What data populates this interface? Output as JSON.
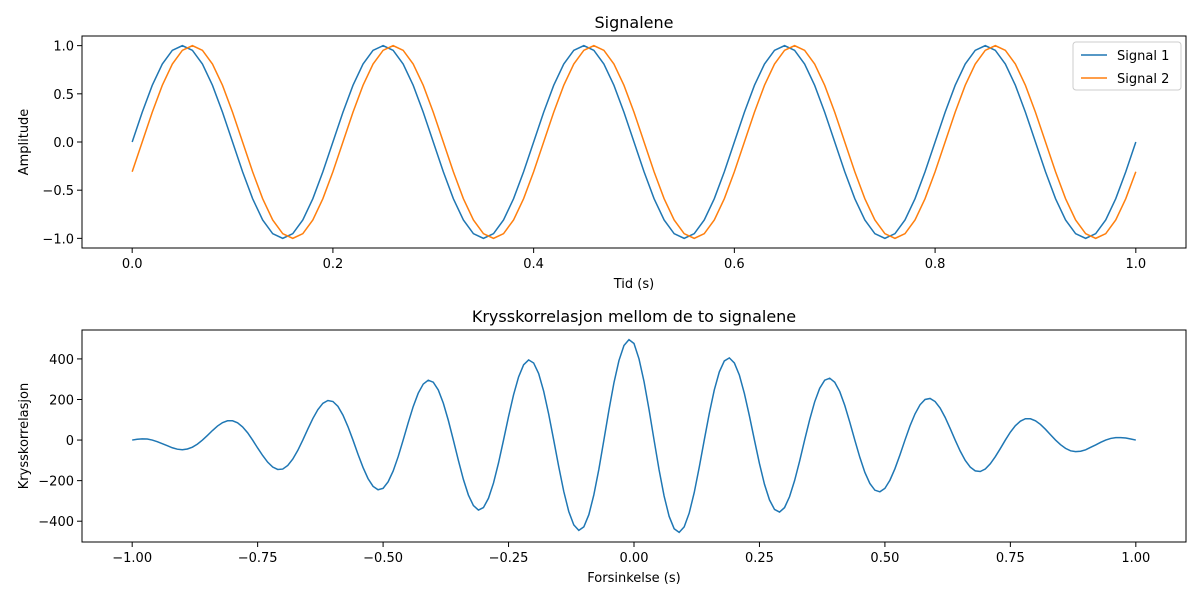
{
  "chart_data": [
    {
      "type": "line",
      "title": "Signalene",
      "xlabel": "Tid (s)",
      "ylabel": "Amplitude",
      "x": [
        0,
        0.01,
        0.02,
        0.03,
        0.04,
        0.05,
        0.06,
        0.07,
        0.08,
        0.09,
        0.1,
        0.11,
        0.12,
        0.13,
        0.14,
        0.15,
        0.16,
        0.17,
        0.18,
        0.19,
        0.2,
        0.21,
        0.22,
        0.23,
        0.24,
        0.25,
        0.26,
        0.27,
        0.28,
        0.29,
        0.3,
        0.31,
        0.32,
        0.33,
        0.34,
        0.35,
        0.36,
        0.37,
        0.38,
        0.39,
        0.4,
        0.41,
        0.42,
        0.43,
        0.44,
        0.45,
        0.46,
        0.47,
        0.48,
        0.49,
        0.5,
        0.51,
        0.52,
        0.53,
        0.54,
        0.55,
        0.56,
        0.57,
        0.58,
        0.59,
        0.6,
        0.61,
        0.62,
        0.63,
        0.64,
        0.65,
        0.66,
        0.67,
        0.68,
        0.69,
        0.7,
        0.71,
        0.72,
        0.73,
        0.74,
        0.75,
        0.76,
        0.77,
        0.78,
        0.79,
        0.8,
        0.81,
        0.82,
        0.83,
        0.84,
        0.85,
        0.86,
        0.87,
        0.88,
        0.89,
        0.9,
        0.91,
        0.92,
        0.93,
        0.94,
        0.95,
        0.96,
        0.97,
        0.98,
        0.99,
        1
      ],
      "series": [
        {
          "name": "Signal 1",
          "color": "#1f77b4",
          "values": [
            0,
            0.309,
            0.588,
            0.809,
            0.951,
            1,
            0.951,
            0.809,
            0.588,
            0.309,
            0,
            -0.309,
            -0.588,
            -0.809,
            -0.951,
            -1,
            -0.951,
            -0.809,
            -0.588,
            -0.309,
            0,
            0.309,
            0.588,
            0.809,
            0.951,
            1,
            0.951,
            0.809,
            0.588,
            0.309,
            0,
            -0.309,
            -0.588,
            -0.809,
            -0.951,
            -1,
            -0.951,
            -0.809,
            -0.588,
            -0.309,
            0,
            0.309,
            0.588,
            0.809,
            0.951,
            1,
            0.951,
            0.809,
            0.588,
            0.309,
            0,
            -0.309,
            -0.588,
            -0.809,
            -0.951,
            -1,
            -0.951,
            -0.809,
            -0.588,
            -0.309,
            0,
            0.309,
            0.588,
            0.809,
            0.951,
            1,
            0.951,
            0.809,
            0.588,
            0.309,
            0,
            -0.309,
            -0.588,
            -0.809,
            -0.951,
            -1,
            -0.951,
            -0.809,
            -0.588,
            -0.309,
            0,
            0.309,
            0.588,
            0.809,
            0.951,
            1,
            0.951,
            0.809,
            0.588,
            0.309,
            0,
            -0.309,
            -0.588,
            -0.809,
            -0.951,
            -1,
            -0.951,
            -0.809,
            -0.588,
            -0.309,
            0
          ]
        },
        {
          "name": "Signal 2",
          "color": "#ff7f0e",
          "values": [
            -0.309,
            0,
            0.309,
            0.588,
            0.809,
            0.951,
            1,
            0.951,
            0.809,
            0.588,
            0.309,
            0,
            -0.309,
            -0.588,
            -0.809,
            -0.951,
            -1,
            -0.951,
            -0.809,
            -0.588,
            -0.309,
            0,
            0.309,
            0.588,
            0.809,
            0.951,
            1,
            0.951,
            0.809,
            0.588,
            0.309,
            0,
            -0.309,
            -0.588,
            -0.809,
            -0.951,
            -1,
            -0.951,
            -0.809,
            -0.588,
            -0.309,
            0,
            0.309,
            0.588,
            0.809,
            0.951,
            1,
            0.951,
            0.809,
            0.588,
            0.309,
            0,
            -0.309,
            -0.588,
            -0.809,
            -0.951,
            -1,
            -0.951,
            -0.809,
            -0.588,
            -0.309,
            0,
            0.309,
            0.588,
            0.809,
            0.951,
            1,
            0.951,
            0.809,
            0.588,
            0.309,
            0,
            -0.309,
            -0.588,
            -0.809,
            -0.951,
            -1,
            -0.951,
            -0.809,
            -0.588,
            -0.309,
            0,
            0.309,
            0.588,
            0.809,
            0.951,
            1,
            0.951,
            0.809,
            0.588,
            0.309,
            0,
            -0.309,
            -0.588,
            -0.809,
            -0.951,
            -1,
            -0.951,
            -0.809,
            -0.588,
            -0.309
          ]
        }
      ],
      "xlim": [
        -0.05,
        1.05
      ],
      "ylim": [
        -1.1,
        1.1
      ],
      "xticks": [
        {
          "value": 0,
          "label": "0.0"
        },
        {
          "value": 0.2,
          "label": "0.2"
        },
        {
          "value": 0.4,
          "label": "0.4"
        },
        {
          "value": 0.6,
          "label": "0.6"
        },
        {
          "value": 0.8,
          "label": "0.8"
        },
        {
          "value": 1,
          "label": "1.0"
        }
      ],
      "yticks": [
        {
          "value": -1,
          "label": "−1.0"
        },
        {
          "value": -0.5,
          "label": "−0.5"
        },
        {
          "value": 0,
          "label": "0.0"
        },
        {
          "value": 0.5,
          "label": "0.5"
        },
        {
          "value": 1,
          "label": "1.0"
        }
      ],
      "legend": "upper right"
    },
    {
      "type": "line",
      "title": "Krysskorrelasjon mellom de to signalene",
      "xlabel": "Forsinkelse (s)",
      "ylabel": "Krysskorrelasjon",
      "color": "#1f77b4",
      "x": [
        -1,
        -0.99,
        -0.98,
        -0.97,
        -0.96,
        -0.95,
        -0.94,
        -0.93,
        -0.92,
        -0.91,
        -0.9,
        -0.89,
        -0.88,
        -0.87,
        -0.86,
        -0.85,
        -0.84,
        -0.83,
        -0.82,
        -0.81,
        -0.8,
        -0.79,
        -0.78,
        -0.77,
        -0.76,
        -0.75,
        -0.74,
        -0.73,
        -0.72,
        -0.71,
        -0.7,
        -0.69,
        -0.68,
        -0.67,
        -0.66,
        -0.65,
        -0.64,
        -0.63,
        -0.62,
        -0.61,
        -0.6,
        -0.59,
        -0.58,
        -0.57,
        -0.56,
        -0.55,
        -0.54,
        -0.53,
        -0.52,
        -0.51,
        -0.5,
        -0.49,
        -0.48,
        -0.47,
        -0.46,
        -0.45,
        -0.44,
        -0.43,
        -0.42,
        -0.41,
        -0.4,
        -0.39,
        -0.38,
        -0.37,
        -0.36,
        -0.35,
        -0.34,
        -0.33,
        -0.32,
        -0.31,
        -0.3,
        -0.29,
        -0.28,
        -0.27,
        -0.26,
        -0.25,
        -0.24,
        -0.23,
        -0.22,
        -0.21,
        -0.2,
        -0.19,
        -0.18,
        -0.17,
        -0.16,
        -0.15,
        -0.14,
        -0.13,
        -0.12,
        -0.11,
        -0.1,
        -0.09,
        -0.08,
        -0.07,
        -0.06,
        -0.05,
        -0.04,
        -0.03,
        -0.02,
        -0.01,
        0,
        0.01,
        0.02,
        0.03,
        0.04,
        0.05,
        0.06,
        0.07,
        0.08,
        0.09,
        0.1,
        0.11,
        0.12,
        0.13,
        0.14,
        0.15,
        0.16,
        0.17,
        0.18,
        0.19,
        0.2,
        0.21,
        0.22,
        0.23,
        0.24,
        0.25,
        0.26,
        0.27,
        0.28,
        0.29,
        0.3,
        0.31,
        0.32,
        0.33,
        0.34,
        0.35,
        0.36,
        0.37,
        0.38,
        0.39,
        0.4,
        0.41,
        0.42,
        0.43,
        0.44,
        0.45,
        0.46,
        0.47,
        0.48,
        0.49,
        0.5,
        0.51,
        0.52,
        0.53,
        0.54,
        0.55,
        0.56,
        0.57,
        0.58,
        0.59,
        0.6,
        0.61,
        0.62,
        0.63,
        0.64,
        0.65,
        0.66,
        0.67,
        0.68,
        0.69,
        0.7,
        0.71,
        0.72,
        0.73,
        0.74,
        0.75,
        0.76,
        0.77,
        0.78,
        0.79,
        0.8,
        0.81,
        0.82,
        0.83,
        0.84,
        0.85,
        0.86,
        0.87,
        0.88,
        0.89,
        0.9,
        0.91,
        0.92,
        0.93,
        0.94,
        0.95,
        0.96,
        0.97,
        0.98,
        0.99,
        1
      ],
      "values": [
        0,
        4,
        6,
        5,
        0,
        -8,
        -18,
        -28,
        -38,
        -45,
        -48,
        -44,
        -35,
        -20,
        0,
        23,
        47,
        69,
        86,
        95,
        95,
        85,
        65,
        36,
        0,
        -39,
        -76,
        -109,
        -133,
        -145,
        -143,
        -125,
        -94,
        -51,
        0,
        54,
        106,
        150,
        181,
        195,
        190,
        166,
        123,
        66,
        0,
        -70,
        -135,
        -190,
        -228,
        -245,
        -238,
        -206,
        -153,
        -82,
        0,
        85,
        165,
        231,
        276,
        295,
        285,
        247,
        182,
        97,
        0,
        -100,
        -194,
        -271,
        -323,
        -345,
        -333,
        -287,
        -212,
        -113,
        0,
        116,
        223,
        311,
        371,
        395,
        380,
        328,
        241,
        128,
        0,
        -131,
        -253,
        -352,
        -418,
        -445,
        -428,
        -368,
        -270,
        -144,
        0,
        147,
        282,
        392,
        466,
        495,
        476,
        400,
        288,
        150,
        0,
        -147,
        -276,
        -376,
        -437,
        -455,
        -428,
        -360,
        -259,
        -134,
        0,
        131,
        247,
        336,
        390,
        405,
        380,
        320,
        229,
        119,
        0,
        -116,
        -218,
        -295,
        -342,
        -355,
        -333,
        -279,
        -200,
        -104,
        0,
        100,
        188,
        255,
        295,
        305,
        285,
        239,
        171,
        88,
        0,
        -85,
        -159,
        -214,
        -247,
        -255,
        -238,
        -198,
        -141,
        -73,
        0,
        70,
        129,
        174,
        200,
        205,
        190,
        158,
        112,
        57,
        0,
        -54,
        -100,
        -133,
        -152,
        -155,
        -143,
        -117,
        -82,
        -42,
        0,
        39,
        71,
        93,
        105,
        105,
        95,
        77,
        53,
        26,
        0,
        -23,
        -41,
        -53,
        -57,
        -55,
        -48,
        -36,
        -24,
        -11,
        0,
        8,
        12,
        12,
        10,
        5,
        0
      ],
      "xlim": [
        -1.1,
        1.1
      ],
      "ylim": [
        -502.5,
        542.5
      ],
      "xticks": [
        {
          "value": -1,
          "label": "−1.00"
        },
        {
          "value": -0.75,
          "label": "−0.75"
        },
        {
          "value": -0.5,
          "label": "−0.50"
        },
        {
          "value": -0.25,
          "label": "−0.25"
        },
        {
          "value": 0,
          "label": "0.00"
        },
        {
          "value": 0.25,
          "label": "0.25"
        },
        {
          "value": 0.5,
          "label": "0.50"
        },
        {
          "value": 0.75,
          "label": "0.75"
        },
        {
          "value": 1,
          "label": "1.00"
        }
      ],
      "yticks": [
        {
          "value": -400,
          "label": "−400"
        },
        {
          "value": -200,
          "label": "−200"
        },
        0,
        200,
        400
      ]
    }
  ]
}
